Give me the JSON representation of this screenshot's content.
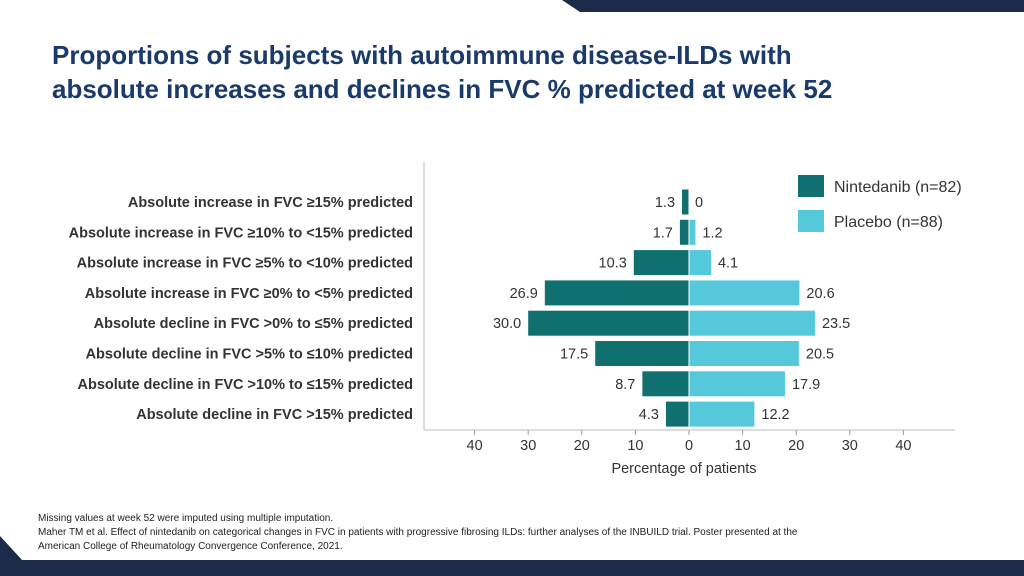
{
  "title_line1": "Proportions of subjects with autoimmune disease-ILDs with",
  "title_line2": "absolute increases and declines in FVC % predicted at week 52",
  "footnote_lines": [
    "Missing values at week 52 were imputed using multiple imputation.",
    "Maher TM et al. Effect of nintedanib on categorical changes in FVC in patients with progressive fibrosing ILDs: further analyses of the INBUILD trial. Poster presented at the",
    "American College of Rheumatology Convergence Conference, 2021."
  ],
  "colors": {
    "title": "#1a3a6b",
    "band": "#1c2b4a",
    "nintedanib": "#10706f",
    "placebo": "#55c8dc"
  },
  "chart_data": {
    "type": "bar",
    "orientation": "horizontal-back-to-back",
    "title": "",
    "xlabel": "Percentage of patients",
    "ylabel": "",
    "xlim": [
      -40,
      40
    ],
    "x_ticks": [
      "40",
      "30",
      "20",
      "10",
      "0",
      "10",
      "20",
      "30",
      "40"
    ],
    "legend_position": "top-right",
    "categories": [
      "Absolute increase in FVC ≥15% predicted",
      "Absolute increase in FVC ≥10% to <15% predicted",
      "Absolute increase in FVC ≥5% to <10% predicted",
      "Absolute increase in FVC ≥0% to <5% predicted",
      "Absolute decline in FVC >0% to ≤5% predicted",
      "Absolute decline in FVC >5% to ≤10% predicted",
      "Absolute decline in FVC >10% to ≤15% predicted",
      "Absolute decline in FVC >15% predicted"
    ],
    "series": [
      {
        "name": "Nintedanib (n=82)",
        "side": "left",
        "values": [
          1.3,
          1.7,
          10.3,
          26.9,
          30.0,
          17.5,
          8.7,
          4.3
        ],
        "labels": [
          "1.3",
          "1.7",
          "10.3",
          "26.9",
          "30.0",
          "17.5",
          "8.7",
          "4.3"
        ]
      },
      {
        "name": "Placebo (n=88)",
        "side": "right",
        "values": [
          0,
          1.2,
          4.1,
          20.6,
          23.5,
          20.5,
          17.9,
          12.2
        ],
        "labels": [
          "0",
          "1.2",
          "4.1",
          "20.6",
          "23.5",
          "20.5",
          "17.9",
          "12.2"
        ]
      }
    ]
  }
}
